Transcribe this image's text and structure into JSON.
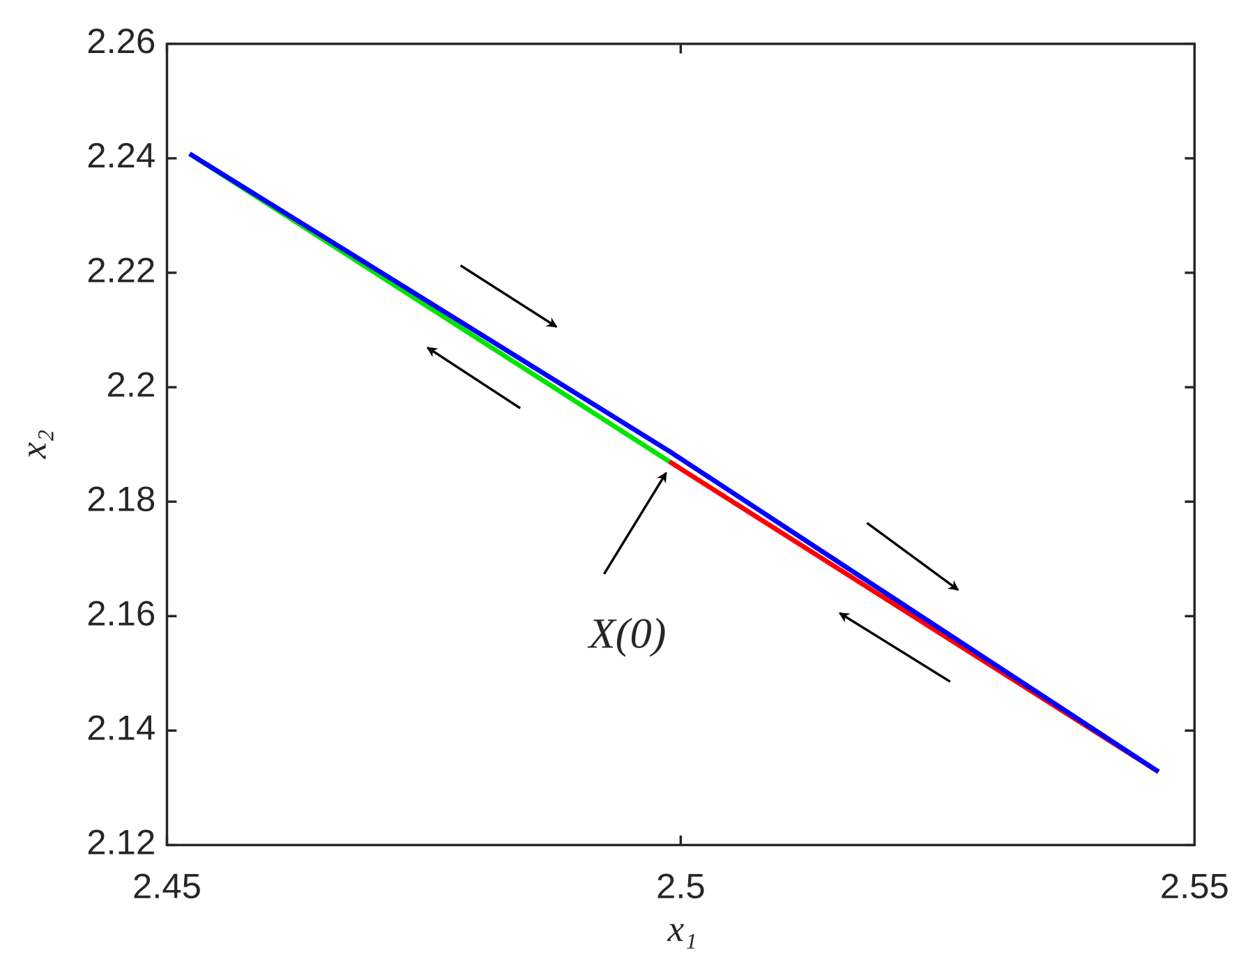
{
  "chart_data": {
    "type": "line",
    "xlabel": "x₁",
    "ylabel": "x₂",
    "annotation": "X(0)",
    "series": [
      {
        "color": "#00e600",
        "x": [
          2.4989,
          2.4522
        ],
        "values": [
          2.187,
          2.2408
        ]
      },
      {
        "color": "#ff0000",
        "x": [
          2.4989,
          2.5465
        ],
        "values": [
          2.187,
          2.1328
        ]
      },
      {
        "color": "#0000ff",
        "x": [
          2.4522,
          2.4989,
          2.5465
        ],
        "values": [
          2.2408,
          2.1888,
          2.1328
        ]
      }
    ],
    "xlim": [
      2.45,
      2.55
    ],
    "xticks": [
      2.45,
      2.5,
      2.55
    ],
    "ylim": [
      2.12,
      2.26
    ],
    "yticks": [
      2.12,
      2.14,
      2.16,
      2.18,
      2.2,
      2.22,
      2.24,
      2.26
    ],
    "grid": false
  }
}
